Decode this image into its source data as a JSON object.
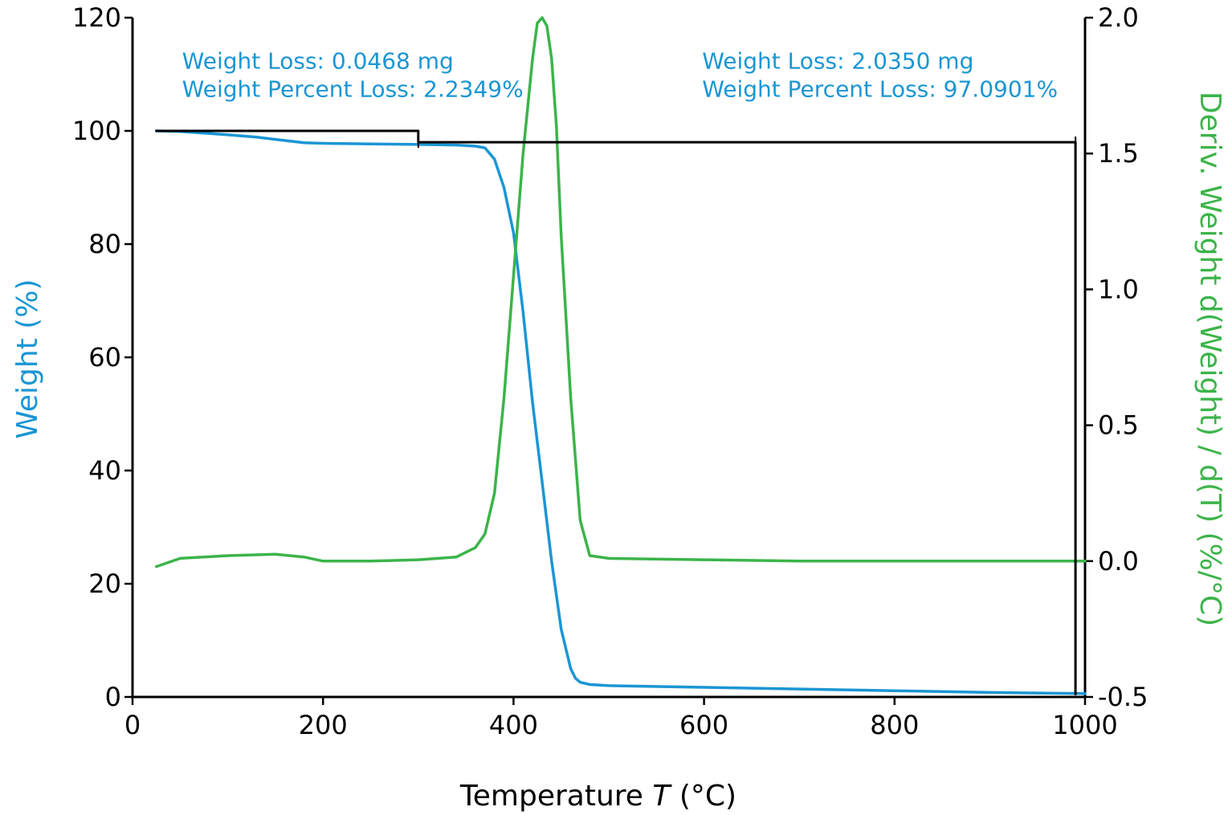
{
  "chart_data": {
    "type": "line",
    "xlabel": "Temperature",
    "xlabel_symbol": "T",
    "xlabel_unit": "(°C)",
    "ylabel": "Weight (%)",
    "y2label": "Deriv. Weight d(Weight) / d(T) (%/°C)",
    "xlim": [
      0,
      1000
    ],
    "ylim": [
      0,
      120
    ],
    "y2lim": [
      -0.5,
      2.0
    ],
    "x_ticks": [
      "0",
      "200",
      "400",
      "600",
      "800",
      "1000"
    ],
    "y_ticks": [
      "0",
      "20",
      "40",
      "60",
      "80",
      "100",
      "120"
    ],
    "y2_ticks": [
      "-0.5",
      "0.0",
      "0.5",
      "1.0",
      "1.5",
      "2.0"
    ],
    "grid": false,
    "colors": {
      "weight": "#1a96d4",
      "deriv": "#3cb44a",
      "step": "#000000"
    },
    "annotations": [
      {
        "lines": [
          "Weight Loss: 0.0468 mg",
          "Weight Percent Loss: 2.2349%"
        ],
        "x": 52,
        "y": 111
      },
      {
        "lines": [
          "Weight Loss: 2.0350 mg",
          "Weight Percent Loss: 97.0901%"
        ],
        "x": 598,
        "y": 111
      }
    ],
    "series": [
      {
        "axis": "left",
        "x": [
          25,
          50,
          100,
          130,
          150,
          180,
          200,
          250,
          300,
          340,
          360,
          370,
          380,
          390,
          400,
          410,
          420,
          430,
          440,
          450,
          460,
          465,
          470,
          480,
          500,
          600,
          700,
          800,
          900,
          1000
        ],
        "values": [
          100,
          99.9,
          99.3,
          98.9,
          98.5,
          97.9,
          97.8,
          97.7,
          97.6,
          97.5,
          97.3,
          97.0,
          95.0,
          90.0,
          82.0,
          68.0,
          52.0,
          38.0,
          24.0,
          12.0,
          5.0,
          3.3,
          2.6,
          2.2,
          2.0,
          1.7,
          1.4,
          1.1,
          0.8,
          0.6
        ]
      },
      {
        "axis": "right",
        "x": [
          25,
          50,
          100,
          150,
          180,
          200,
          250,
          300,
          340,
          360,
          370,
          380,
          390,
          400,
          410,
          420,
          425,
          430,
          435,
          440,
          445,
          450,
          460,
          470,
          480,
          500,
          600,
          700,
          800,
          900,
          1000
        ],
        "values": [
          -0.02,
          0.01,
          0.02,
          0.025,
          0.015,
          0.0,
          0.0,
          0.005,
          0.015,
          0.05,
          0.1,
          0.25,
          0.6,
          1.05,
          1.5,
          1.85,
          1.98,
          2.0,
          1.97,
          1.85,
          1.6,
          1.2,
          0.6,
          0.15,
          0.02,
          0.01,
          0.005,
          0.0,
          0.0,
          0.0,
          0.0
        ]
      },
      {
        "axis": "left",
        "x": [
          25,
          300,
          300,
          990,
          990
        ],
        "values": [
          100.0,
          100.0,
          98.0,
          98.0,
          0.5
        ]
      }
    ]
  }
}
